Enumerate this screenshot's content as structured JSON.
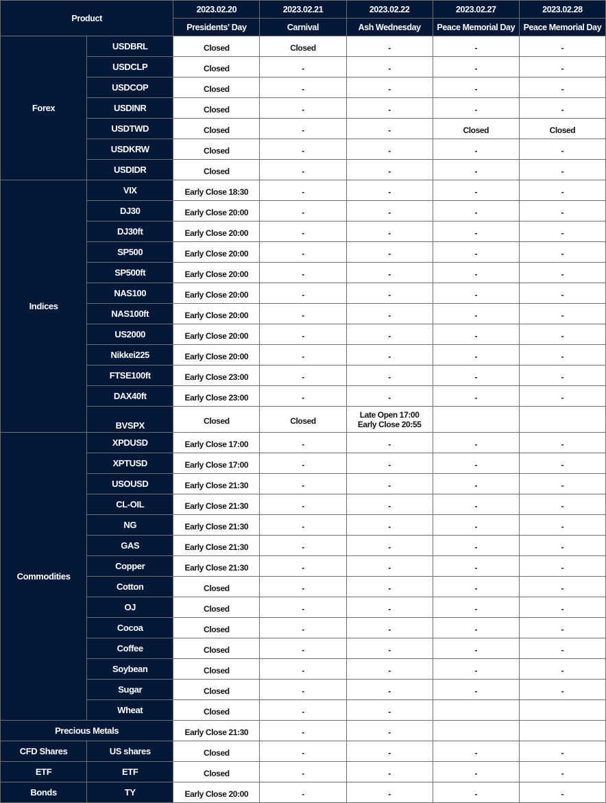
{
  "header": {
    "product_label": "Product",
    "columns": [
      {
        "date": "2023.02.20",
        "holiday": "Presidents' Day"
      },
      {
        "date": "2023.02.21",
        "holiday": "Carnival"
      },
      {
        "date": "2023.02.22",
        "holiday": "Ash Wednesday"
      },
      {
        "date": "2023.02.27",
        "holiday": "Peace Memorial Day"
      },
      {
        "date": "2023.02.28",
        "holiday": "Peace Memorial Day"
      }
    ]
  },
  "colors": {
    "header_bg": "#041838",
    "header_text": "#ffffff",
    "grid": "#6e6e6e"
  },
  "groups": [
    {
      "name": "Forex",
      "rows": [
        {
          "product": "USDBRL",
          "cells": [
            "Closed",
            "Closed",
            "-",
            "-",
            "-"
          ]
        },
        {
          "product": "USDCLP",
          "cells": [
            "Closed",
            "-",
            "-",
            "-",
            "-"
          ]
        },
        {
          "product": "USDCOP",
          "cells": [
            "Closed",
            "-",
            "-",
            "-",
            "-"
          ]
        },
        {
          "product": "USDINR",
          "cells": [
            "Closed",
            "-",
            "-",
            "-",
            "-"
          ]
        },
        {
          "product": "USDTWD",
          "cells": [
            "Closed",
            "-",
            "-",
            "Closed",
            "Closed"
          ]
        },
        {
          "product": "USDKRW",
          "cells": [
            "Closed",
            "-",
            "-",
            "-",
            "-"
          ]
        },
        {
          "product": "USDIDR",
          "cells": [
            "Closed",
            "-",
            "-",
            "-",
            "-"
          ]
        }
      ]
    },
    {
      "name": "Indices",
      "rows": [
        {
          "product": "VIX",
          "cells": [
            "Early Close 18:30",
            "-",
            "-",
            "-",
            "-"
          ]
        },
        {
          "product": "DJ30",
          "cells": [
            "Early Close 20:00",
            "-",
            "-",
            "-",
            "-"
          ]
        },
        {
          "product": "DJ30ft",
          "cells": [
            "Early Close 20:00",
            "-",
            "-",
            "-",
            "-"
          ]
        },
        {
          "product": "SP500",
          "cells": [
            "Early Close 20:00",
            "-",
            "-",
            "-",
            "-"
          ]
        },
        {
          "product": "SP500ft",
          "cells": [
            "Early Close 20:00",
            "-",
            "-",
            "-",
            "-"
          ]
        },
        {
          "product": "NAS100",
          "cells": [
            "Early Close 20:00",
            "-",
            "-",
            "-",
            "-"
          ]
        },
        {
          "product": "NAS100ft",
          "cells": [
            "Early Close 20:00",
            "-",
            "-",
            "-",
            "-"
          ]
        },
        {
          "product": "US2000",
          "cells": [
            "Early Close 20:00",
            "-",
            "-",
            "-",
            "-"
          ]
        },
        {
          "product": "Nikkei225",
          "cells": [
            "Early Close 20:00",
            "-",
            "-",
            "-",
            "-"
          ]
        },
        {
          "product": "FTSE100ft",
          "cells": [
            "Early Close 23:00",
            "-",
            "-",
            "-",
            "-"
          ]
        },
        {
          "product": "DAX40ft",
          "cells": [
            "Early Close 23:00",
            "-",
            "-",
            "-",
            "-"
          ]
        },
        {
          "product": "BVSPX",
          "cells": [
            "Closed",
            "Closed",
            "Late Open 17:00\nEarly Close 20:55",
            "",
            ""
          ]
        }
      ]
    },
    {
      "name": "Commodities",
      "rows": [
        {
          "product": "XPDUSD",
          "cells": [
            "Early Close 17:00",
            "-",
            "-",
            "-",
            "-"
          ]
        },
        {
          "product": "XPTUSD",
          "cells": [
            "Early Close 17:00",
            "-",
            "-",
            "-",
            "-"
          ]
        },
        {
          "product": "USOUSD",
          "cells": [
            "Early Close 21:30",
            "-",
            "-",
            "-",
            "-"
          ]
        },
        {
          "product": "CL-OIL",
          "cells": [
            "Early Close 21:30",
            "-",
            "-",
            "-",
            "-"
          ]
        },
        {
          "product": "NG",
          "cells": [
            "Early Close 21:30",
            "-",
            "-",
            "-",
            "-"
          ]
        },
        {
          "product": "GAS",
          "cells": [
            "Early Close 21:30",
            "-",
            "-",
            "-",
            "-"
          ]
        },
        {
          "product": "Copper",
          "cells": [
            "Early Close 21:30",
            "-",
            "-",
            "-",
            "-"
          ]
        },
        {
          "product": "Cotton",
          "cells": [
            "Closed",
            "-",
            "-",
            "-",
            "-"
          ]
        },
        {
          "product": "OJ",
          "cells": [
            "Closed",
            "-",
            "-",
            "-",
            "-"
          ]
        },
        {
          "product": "Cocoa",
          "cells": [
            "Closed",
            "-",
            "-",
            "-",
            "-"
          ]
        },
        {
          "product": "Coffee",
          "cells": [
            "Closed",
            "-",
            "-",
            "-",
            "-"
          ]
        },
        {
          "product": "Soybean",
          "cells": [
            "Closed",
            "-",
            "-",
            "-",
            "-"
          ]
        },
        {
          "product": "Sugar",
          "cells": [
            "Closed",
            "-",
            "-",
            "-",
            "-"
          ]
        },
        {
          "product": "Wheat",
          "cells": [
            "Closed",
            "-",
            "-",
            "",
            ""
          ]
        }
      ]
    },
    {
      "name": "Precious Metals",
      "merged": true,
      "rows": [
        {
          "product": "",
          "cells": [
            "Early Close 21:30",
            "-",
            "-",
            "",
            ""
          ]
        }
      ]
    },
    {
      "name": "CFD Shares",
      "rows": [
        {
          "product": "US shares",
          "cells": [
            "Closed",
            "-",
            "-",
            "-",
            "-"
          ]
        }
      ]
    },
    {
      "name": "ETF",
      "rows": [
        {
          "product": "ETF",
          "cells": [
            "Closed",
            "-",
            "-",
            "-",
            "-"
          ]
        }
      ]
    },
    {
      "name": "Bonds",
      "rows": [
        {
          "product": "TY",
          "cells": [
            "Early Close 20:00",
            "-",
            "-",
            "-",
            "-"
          ]
        }
      ]
    }
  ]
}
